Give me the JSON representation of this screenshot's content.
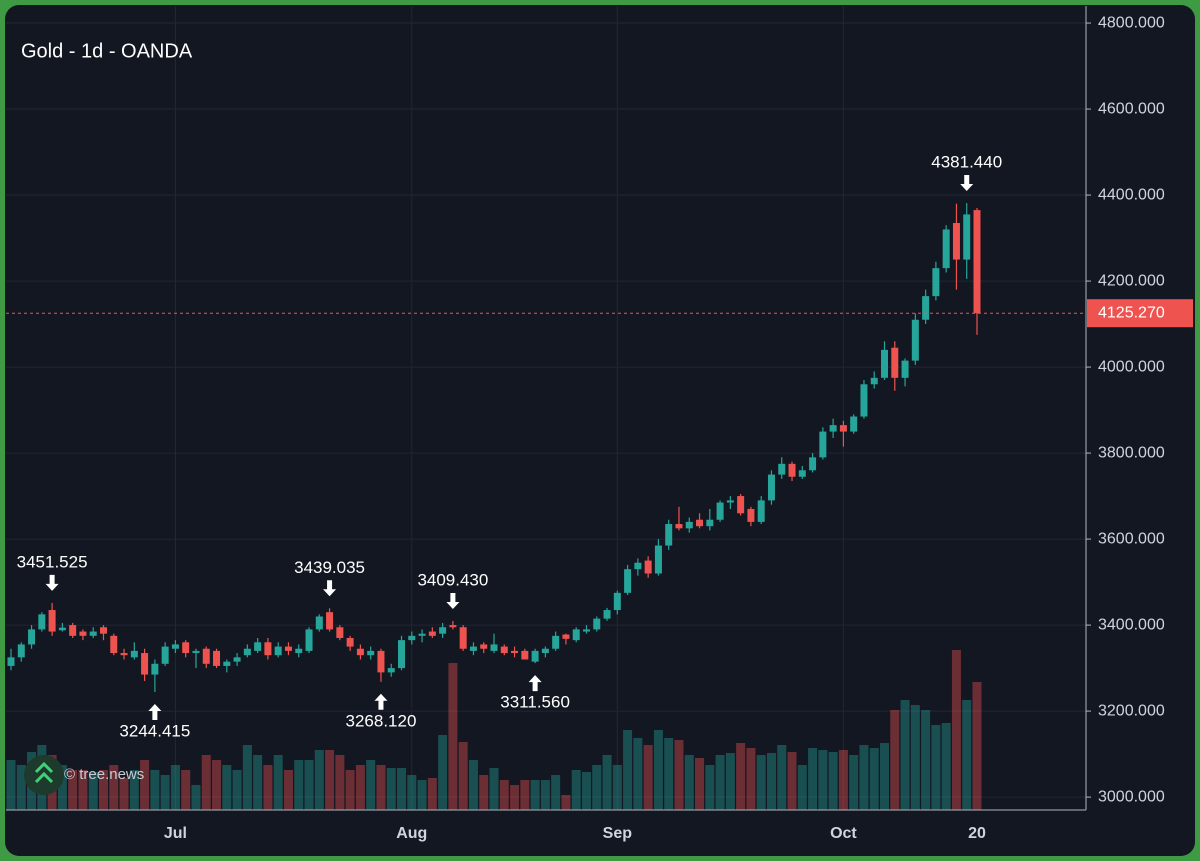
{
  "chart_data": {
    "type": "candlestick",
    "title": "Gold - 1d - OANDA",
    "watermark": "© tree.news",
    "categories": [
      null,
      null,
      null,
      null,
      null,
      null,
      null,
      null,
      null,
      null,
      null,
      null,
      null,
      null,
      null,
      null,
      "Jul",
      null,
      null,
      null,
      null,
      null,
      null,
      null,
      null,
      null,
      null,
      null,
      null,
      null,
      null,
      null,
      null,
      null,
      null,
      null,
      null,
      null,
      null,
      "Aug",
      null,
      null,
      null,
      null,
      null,
      null,
      null,
      null,
      null,
      null,
      null,
      null,
      null,
      null,
      null,
      null,
      null,
      null,
      null,
      "Sep",
      null,
      null,
      null,
      null,
      null,
      null,
      null,
      null,
      null,
      null,
      null,
      null,
      null,
      null,
      null,
      null,
      null,
      null,
      null,
      null,
      null,
      "Oct",
      null,
      null,
      null,
      null,
      null,
      null,
      null,
      null,
      null,
      null,
      null,
      null,
      "20"
    ],
    "open": [
      3305,
      3325,
      3355,
      3390,
      3435,
      3388,
      3400,
      3385,
      3375,
      3395,
      3375,
      3335,
      3325,
      3335,
      3285,
      3310,
      3345,
      3360,
      3335,
      3345,
      3340,
      3305,
      3315,
      3330,
      3340,
      3360,
      3330,
      3350,
      3335,
      3340,
      3390,
      3430,
      3395,
      3370,
      3345,
      3330,
      3340,
      3290,
      3300,
      3365,
      3375,
      3385,
      3380,
      3400,
      3395,
      3340,
      3355,
      3340,
      3350,
      3340,
      3340,
      3315,
      3335,
      3345,
      3378,
      3365,
      3385,
      3390,
      3415,
      3435,
      3475,
      3530,
      3550,
      3520,
      3585,
      3635,
      3625,
      3645,
      3630,
      3645,
      3685,
      3700,
      3670,
      3640,
      3690,
      3750,
      3775,
      3745,
      3760,
      3790,
      3850,
      3865,
      3850,
      3885,
      3960,
      3975,
      4045,
      3975,
      4015,
      4110,
      4165,
      4230,
      4335,
      4250,
      4365
    ],
    "high": [
      3345,
      3360,
      3400,
      3430,
      3451.525,
      3405,
      3405,
      3390,
      3395,
      3400,
      3380,
      3345,
      3360,
      3345,
      3320,
      3360,
      3365,
      3365,
      3345,
      3350,
      3345,
      3320,
      3335,
      3355,
      3370,
      3370,
      3360,
      3360,
      3355,
      3395,
      3425,
      3439.035,
      3400,
      3375,
      3355,
      3350,
      3345,
      3310,
      3375,
      3385,
      3390,
      3395,
      3405,
      3409.43,
      3400,
      3360,
      3360,
      3380,
      3355,
      3350,
      3345,
      3345,
      3350,
      3385,
      3380,
      3395,
      3400,
      3420,
      3440,
      3480,
      3540,
      3555,
      3560,
      3600,
      3645,
      3675,
      3650,
      3660,
      3670,
      3690,
      3700,
      3705,
      3675,
      3700,
      3760,
      3790,
      3780,
      3770,
      3800,
      3860,
      3880,
      3875,
      3890,
      3970,
      3990,
      4060,
      4060,
      4020,
      4125,
      4180,
      4245,
      4330,
      4380,
      4381.44,
      4370
    ],
    "low": [
      3295,
      3315,
      3345,
      3385,
      3375,
      3385,
      3370,
      3365,
      3370,
      3365,
      3330,
      3320,
      3320,
      3270,
      3244.415,
      3305,
      3335,
      3325,
      3300,
      3300,
      3300,
      3290,
      3305,
      3325,
      3335,
      3320,
      3325,
      3330,
      3325,
      3335,
      3385,
      3385,
      3365,
      3340,
      3320,
      3320,
      3268.12,
      3280,
      3295,
      3355,
      3360,
      3370,
      3370,
      3390,
      3340,
      3330,
      3335,
      3335,
      3330,
      3325,
      3320,
      3311.56,
      3325,
      3340,
      3355,
      3360,
      3380,
      3385,
      3410,
      3425,
      3470,
      3515,
      3510,
      3515,
      3575,
      3620,
      3615,
      3625,
      3620,
      3640,
      3670,
      3655,
      3630,
      3635,
      3680,
      3740,
      3735,
      3740,
      3755,
      3785,
      3835,
      3815,
      3845,
      3880,
      3950,
      3970,
      3945,
      3955,
      4005,
      4100,
      4155,
      4220,
      4180,
      4205,
      4075
    ],
    "close": [
      3325,
      3355,
      3390,
      3425,
      3385,
      3394,
      3375,
      3375,
      3385,
      3380,
      3335,
      3330,
      3340,
      3285,
      3310,
      3350,
      3355,
      3335,
      3340,
      3310,
      3305,
      3315,
      3325,
      3345,
      3360,
      3330,
      3350,
      3340,
      3345,
      3390,
      3420,
      3390,
      3370,
      3350,
      3330,
      3340,
      3290,
      3300,
      3365,
      3375,
      3380,
      3375,
      3395,
      3395,
      3345,
      3350,
      3345,
      3355,
      3335,
      3335,
      3320,
      3340,
      3345,
      3375,
      3368,
      3390,
      3390,
      3415,
      3435,
      3475,
      3530,
      3545,
      3520,
      3585,
      3635,
      3625,
      3640,
      3630,
      3645,
      3685,
      3690,
      3660,
      3640,
      3690,
      3750,
      3775,
      3745,
      3760,
      3790,
      3850,
      3865,
      3850,
      3885,
      3960,
      3975,
      4040,
      3975,
      4015,
      4110,
      4165,
      4230,
      4320,
      4250,
      4355,
      4125.27
    ],
    "volume": [
      50,
      45,
      58,
      65,
      55,
      45,
      40,
      40,
      38,
      40,
      45,
      32,
      40,
      50,
      40,
      35,
      45,
      40,
      25,
      55,
      50,
      45,
      40,
      65,
      55,
      45,
      55,
      40,
      50,
      50,
      60,
      60,
      55,
      40,
      45,
      50,
      45,
      42,
      42,
      35,
      30,
      32,
      75,
      147,
      68,
      50,
      35,
      42,
      30,
      25,
      30,
      30,
      30,
      35,
      15,
      40,
      38,
      45,
      55,
      45,
      80,
      72,
      65,
      80,
      72,
      70,
      55,
      52,
      45,
      55,
      57,
      67,
      62,
      55,
      57,
      65,
      58,
      45,
      62,
      60,
      58,
      60,
      55,
      65,
      62,
      67,
      100,
      110,
      105,
      100,
      85,
      87,
      160,
      110,
      128
    ],
    "up_color": "#26a69a",
    "down_color": "#ef5350",
    "ylim": [
      2970,
      4835
    ],
    "yticks": [
      {
        "value": 3000,
        "label": "3000.000"
      },
      {
        "value": 3200,
        "label": "3200.000"
      },
      {
        "value": 3400,
        "label": "3400.000"
      },
      {
        "value": 3600,
        "label": "3600.000"
      },
      {
        "value": 3800,
        "label": "3800.000"
      },
      {
        "value": 4000,
        "label": "4000.000"
      },
      {
        "value": 4200,
        "label": "4200.000"
      },
      {
        "value": 4400,
        "label": "4400.000"
      },
      {
        "value": 4600,
        "label": "4600.000"
      },
      {
        "value": 4800,
        "label": "4800.000"
      }
    ],
    "annotations": [
      {
        "value": 3451.525,
        "label": "3451.525"
      },
      {
        "value": 3244.415,
        "label": "3244.415"
      },
      {
        "value": 3439.035,
        "label": "3439.035"
      },
      {
        "value": 3268.12,
        "label": "3268.120"
      },
      {
        "value": 3409.43,
        "label": "3409.430"
      },
      {
        "value": 3311.56,
        "label": "3311.560"
      },
      {
        "value": 4381.44,
        "label": "4381.440"
      }
    ],
    "last_price": {
      "value": 4125.27,
      "label": "4125.270"
    },
    "grid": true
  }
}
